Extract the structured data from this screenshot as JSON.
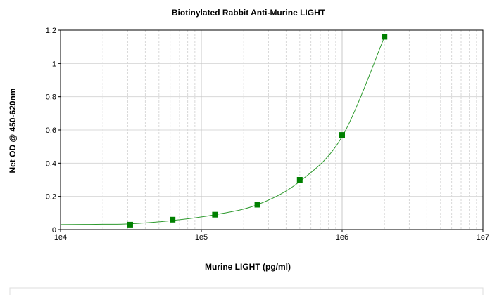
{
  "chart_data": {
    "type": "scatter",
    "title": "Biotinylated Rabbit Anti-Murine LIGHT",
    "x_label": "Murine LIGHT (pg/ml)",
    "y_label": "Net OD @ 450-620nm",
    "log_x": true,
    "grid": true,
    "xlim": [
      10000,
      10000000
    ],
    "xticks": [
      {
        "value": 10000,
        "label": "1e4"
      },
      {
        "value": 100000,
        "label": "1e5"
      },
      {
        "value": 1000000,
        "label": "1e6"
      },
      {
        "value": 10000000,
        "label": "1e7"
      }
    ],
    "ylim": [
      0,
      1.2
    ],
    "yticks": [
      0,
      0.2,
      0.4,
      0.6,
      0.8,
      1,
      1.2
    ],
    "series": [
      {
        "color": "#008000",
        "marker": "square",
        "x": [
          31250,
          62500,
          125000,
          250000,
          500000,
          1000000,
          2000000
        ],
        "values": [
          0.03,
          0.06,
          0.09,
          0.15,
          0.3,
          0.57,
          1.16
        ]
      },
      {
        "color": "#2e9a2e",
        "marker": "line",
        "x": [
          10000,
          20000,
          31250,
          62500,
          125000,
          250000,
          500000,
          1000000,
          2000000
        ],
        "values": [
          0.03,
          0.032,
          0.035,
          0.055,
          0.09,
          0.15,
          0.29,
          0.56,
          1.16
        ]
      }
    ]
  }
}
